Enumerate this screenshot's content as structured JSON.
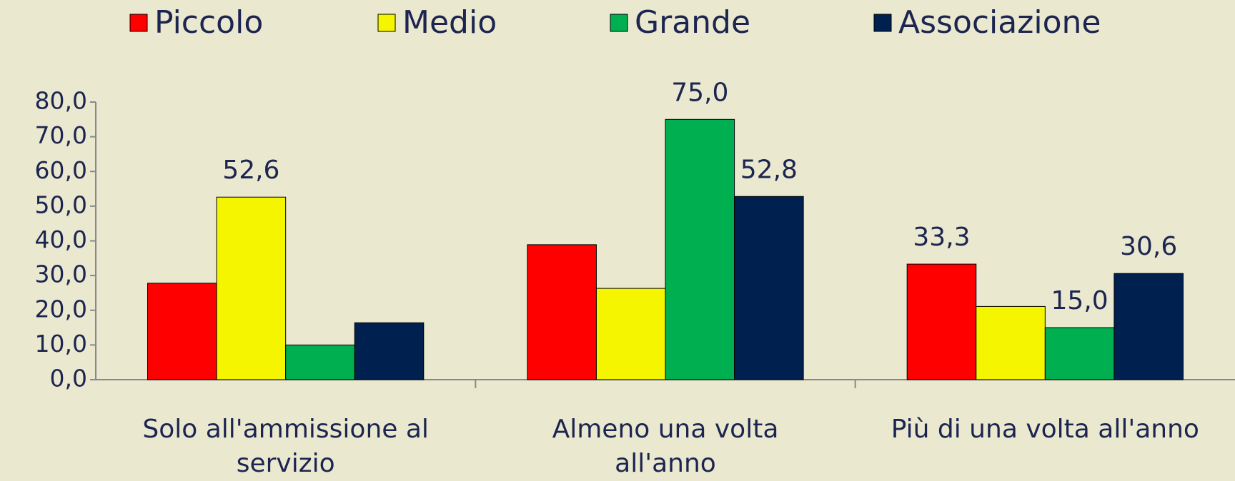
{
  "chart_data": {
    "type": "bar",
    "categories": [
      "Solo all'ammissione al servizio",
      "Almeno una volta all'anno",
      "Più di una volta all'anno"
    ],
    "series": [
      {
        "name": "Piccolo",
        "color": "#ff0000",
        "values": [
          27.8,
          38.9,
          33.3
        ],
        "value_labels": [
          null,
          null,
          "33,3"
        ]
      },
      {
        "name": "Medio",
        "color": "#f5f500",
        "values": [
          52.6,
          26.3,
          21.1
        ],
        "value_labels": [
          "52,6",
          null,
          null
        ]
      },
      {
        "name": "Grande",
        "color": "#00b050",
        "values": [
          10.0,
          75.0,
          15.0
        ],
        "value_labels": [
          null,
          "75,0",
          "15,0"
        ]
      },
      {
        "name": "Associazione",
        "color": "#002050",
        "values": [
          16.4,
          52.8,
          30.6
        ],
        "value_labels": [
          null,
          "52,8",
          "30,6"
        ]
      }
    ],
    "ylim": [
      0,
      80
    ],
    "yticks": [
      {
        "value": 0,
        "label": "0,0"
      },
      {
        "value": 10,
        "label": "10,0"
      },
      {
        "value": 20,
        "label": "20,0"
      },
      {
        "value": 30,
        "label": "30,0"
      },
      {
        "value": 40,
        "label": "40,0"
      },
      {
        "value": 50,
        "label": "50,0"
      },
      {
        "value": 60,
        "label": "60,0"
      },
      {
        "value": 70,
        "label": "70,0"
      },
      {
        "value": 80,
        "label": "80,0"
      }
    ],
    "legend": "top",
    "grid": false
  }
}
